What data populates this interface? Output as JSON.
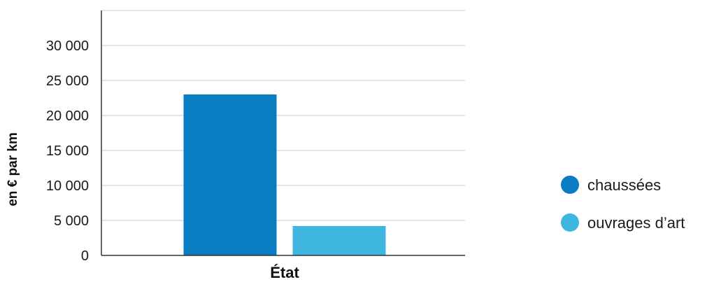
{
  "chart_data": {
    "type": "bar",
    "categories": [
      "État"
    ],
    "series": [
      {
        "name": "chaussées",
        "values": [
          23000
        ],
        "color": "#0a7cc1"
      },
      {
        "name": "ouvrages d’art",
        "values": [
          4200
        ],
        "color": "#3fb6e0"
      }
    ],
    "xlabel": "État",
    "ylabel": "en € par km",
    "ylim": [
      0,
      35000
    ],
    "yticks": [
      0,
      5000,
      10000,
      15000,
      20000,
      25000,
      30000
    ],
    "ytick_labels": [
      "0",
      "5 000",
      "10 000",
      "15 000",
      "20 000",
      "25 000",
      "30 000"
    ],
    "grid": true,
    "legend_position": "right"
  }
}
